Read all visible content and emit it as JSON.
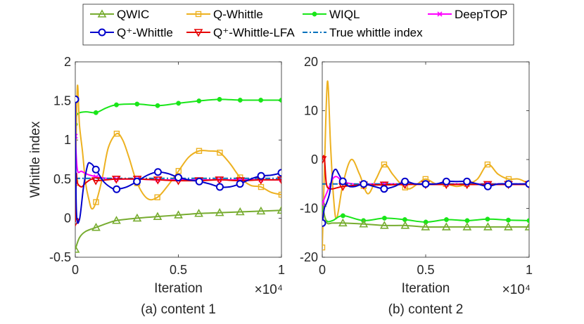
{
  "legend": {
    "entries": [
      {
        "name": "QWIC",
        "color": "#77AC30",
        "marker": "triangle-up"
      },
      {
        "name": "Q-Whittle",
        "color": "#EDB120",
        "marker": "square"
      },
      {
        "name": "WIQL",
        "color": "#19E619",
        "marker": "dot"
      },
      {
        "name": "DeepTOP",
        "color": "#FF00FF",
        "marker": "x"
      },
      {
        "name": "Q⁺-Whittle",
        "color": "#0000CC",
        "marker": "circle"
      },
      {
        "name": "Q⁺-Whittle-LFA",
        "color": "#E60000",
        "marker": "triangle-down"
      },
      {
        "name": "True whittle index",
        "color": "#0072BD",
        "marker": "none",
        "dash": "dashdot"
      }
    ]
  },
  "chart_data": [
    {
      "type": "line",
      "caption": "(a) content 1",
      "xlabel": "Iteration",
      "ylabel": "Whittle index",
      "x_exponent": "×10⁴",
      "xlim": [
        0,
        1
      ],
      "ylim": [
        -0.5,
        2
      ],
      "xticks": [
        "0",
        "0.5",
        "1"
      ],
      "yticks": [
        "-0.5",
        "0",
        "0.5",
        "1",
        "1.5",
        "2"
      ],
      "series": [
        {
          "name": "WIQL",
          "x": [
            0,
            0.01,
            0.05,
            0.1,
            0.15,
            0.2,
            0.3,
            0.4,
            0.5,
            0.6,
            0.7,
            0.8,
            0.9,
            1.0
          ],
          "y": [
            1.2,
            1.33,
            1.36,
            1.35,
            1.41,
            1.45,
            1.46,
            1.44,
            1.47,
            1.5,
            1.52,
            1.51,
            1.51,
            1.51
          ],
          "markers": [
            0,
            0.1,
            0.2,
            0.3,
            0.4,
            0.5,
            0.6,
            0.7,
            0.8,
            0.9,
            1.0
          ]
        },
        {
          "name": "Q-Whittle",
          "x": [
            0,
            0.01,
            0.02,
            0.035,
            0.05,
            0.065,
            0.08,
            0.1,
            0.13,
            0.16,
            0.2,
            0.23,
            0.26,
            0.3,
            0.35,
            0.4,
            0.45,
            0.5,
            0.55,
            0.6,
            0.65,
            0.7,
            0.75,
            0.8,
            0.85,
            0.9,
            0.95,
            1.0
          ],
          "y": [
            0.45,
            1.68,
            1.2,
            0.85,
            0.45,
            0.25,
            0.12,
            0.2,
            0.5,
            0.9,
            1.08,
            1.0,
            0.78,
            0.45,
            0.25,
            0.27,
            0.42,
            0.6,
            0.78,
            0.86,
            0.86,
            0.84,
            0.7,
            0.52,
            0.42,
            0.4,
            0.33,
            0.3
          ],
          "markers": [
            0,
            0.1,
            0.2,
            0.3,
            0.4,
            0.5,
            0.6,
            0.7,
            0.8,
            0.9,
            1.0
          ]
        },
        {
          "name": "DeepTOP",
          "x": [
            0,
            0.01,
            0.03,
            0.06,
            0.1,
            0.15,
            0.2,
            0.3,
            0.4,
            0.5,
            0.6,
            0.7,
            0.8,
            0.9,
            1.0
          ],
          "y": [
            1.05,
            0.62,
            0.6,
            0.56,
            0.53,
            0.51,
            0.5,
            0.5,
            0.49,
            0.49,
            0.49,
            0.49,
            0.49,
            0.49,
            0.49
          ],
          "markers": [
            0,
            0.1,
            0.2,
            0.3,
            0.4,
            0.5,
            0.6,
            0.7,
            0.8,
            0.9,
            1.0
          ]
        },
        {
          "name": "True whittle index",
          "x": [
            0,
            1.0
          ],
          "y": [
            0.51,
            0.51
          ],
          "markers": []
        },
        {
          "name": "Q⁺-Whittle-LFA",
          "x": [
            0,
            0.005,
            0.01,
            0.03,
            0.05,
            0.08,
            0.1,
            0.15,
            0.2,
            0.3,
            0.4,
            0.5,
            0.6,
            0.7,
            0.8,
            0.9,
            1.0
          ],
          "y": [
            -0.05,
            0.55,
            0.45,
            0.4,
            0.45,
            0.5,
            0.48,
            0.49,
            0.5,
            0.5,
            0.49,
            0.48,
            0.48,
            0.49,
            0.48,
            0.49,
            0.49
          ],
          "markers": [
            0,
            0.1,
            0.2,
            0.3,
            0.4,
            0.5,
            0.6,
            0.7,
            0.8,
            0.9,
            1.0
          ]
        },
        {
          "name": "Q⁺-Whittle",
          "x": [
            0,
            0.005,
            0.02,
            0.04,
            0.06,
            0.075,
            0.09,
            0.11,
            0.14,
            0.18,
            0.2,
            0.25,
            0.3,
            0.35,
            0.4,
            0.45,
            0.5,
            0.55,
            0.6,
            0.65,
            0.7,
            0.75,
            0.8,
            0.85,
            0.9,
            0.95,
            1.0
          ],
          "y": [
            1.52,
            0.12,
            -0.02,
            0.4,
            0.68,
            0.7,
            0.66,
            0.58,
            0.46,
            0.38,
            0.37,
            0.4,
            0.47,
            0.55,
            0.59,
            0.57,
            0.52,
            0.49,
            0.47,
            0.44,
            0.4,
            0.4,
            0.44,
            0.5,
            0.54,
            0.55,
            0.58
          ],
          "markers": [
            0,
            0.1,
            0.2,
            0.3,
            0.4,
            0.5,
            0.6,
            0.7,
            0.8,
            0.9,
            1.0
          ]
        },
        {
          "name": "QWIC",
          "x": [
            0,
            0.02,
            0.05,
            0.1,
            0.15,
            0.2,
            0.3,
            0.4,
            0.5,
            0.6,
            0.7,
            0.8,
            0.9,
            1.0
          ],
          "y": [
            -0.4,
            -0.25,
            -0.17,
            -0.12,
            -0.07,
            -0.03,
            0.0,
            0.02,
            0.04,
            0.06,
            0.07,
            0.08,
            0.09,
            0.1
          ],
          "markers": [
            0,
            0.1,
            0.2,
            0.3,
            0.4,
            0.5,
            0.6,
            0.7,
            0.8,
            0.9,
            1.0
          ]
        }
      ]
    },
    {
      "type": "line",
      "caption": "(b) content 2",
      "xlabel": "Iteration",
      "ylabel": "",
      "x_exponent": "×10⁴",
      "xlim": [
        0,
        1
      ],
      "ylim": [
        -20,
        20
      ],
      "xticks": [
        "0",
        "0.5",
        "1"
      ],
      "yticks": [
        "-20",
        "-10",
        "0",
        "10",
        "20"
      ],
      "series": [
        {
          "name": "Q-Whittle",
          "x": [
            0,
            0.01,
            0.025,
            0.04,
            0.055,
            0.07,
            0.1,
            0.14,
            0.18,
            0.22,
            0.26,
            0.3,
            0.34,
            0.38,
            0.42,
            0.46,
            0.5,
            0.55,
            0.6,
            0.65,
            0.7,
            0.75,
            0.8,
            0.85,
            0.9,
            0.95,
            1.0
          ],
          "y": [
            -18,
            -3,
            16,
            3,
            -8,
            -12,
            -5,
            0,
            -3,
            -7,
            -4,
            -1,
            -3,
            -5,
            -6,
            -5,
            -4,
            -5,
            -5,
            -5.5,
            -5,
            -4,
            -1,
            -3,
            -4,
            -4,
            -5
          ],
          "markers": [
            0,
            0.1,
            0.2,
            0.3,
            0.4,
            0.5,
            0.6,
            0.7,
            0.8,
            0.9,
            1.0
          ]
        },
        {
          "name": "WIQL",
          "x": [
            0,
            0.02,
            0.05,
            0.1,
            0.2,
            0.3,
            0.4,
            0.5,
            0.6,
            0.7,
            0.8,
            0.9,
            1.0
          ],
          "y": [
            -10,
            -12.5,
            -12.5,
            -11.5,
            -12.5,
            -12,
            -12.3,
            -12.8,
            -12.3,
            -12.5,
            -12.2,
            -12.4,
            -12.5
          ],
          "markers": [
            0,
            0.1,
            0.2,
            0.3,
            0.4,
            0.5,
            0.6,
            0.7,
            0.8,
            0.9,
            1.0
          ]
        },
        {
          "name": "QWIC",
          "x": [
            0,
            0.02,
            0.05,
            0.1,
            0.2,
            0.3,
            0.4,
            0.5,
            0.6,
            0.7,
            0.8,
            0.9,
            1.0
          ],
          "y": [
            -9,
            -12.8,
            -13,
            -13,
            -13.2,
            -13.5,
            -13.5,
            -13.8,
            -13.8,
            -13.8,
            -13.8,
            -13.8,
            -13.8
          ],
          "markers": [
            0,
            0.1,
            0.2,
            0.3,
            0.4,
            0.5,
            0.6,
            0.7,
            0.8,
            0.9,
            1.0
          ]
        },
        {
          "name": "DeepTOP",
          "x": [
            0,
            0.01,
            0.03,
            0.05,
            0.07,
            0.1,
            0.15,
            0.2,
            0.3,
            0.4,
            0.5,
            0.6,
            0.7,
            0.8,
            0.9,
            1.0
          ],
          "y": [
            -9,
            -8,
            -6,
            -4,
            -3.5,
            -4.5,
            -5,
            -5,
            -5,
            -5,
            -5,
            -5,
            -5,
            -5,
            -5,
            -5
          ],
          "markers": [
            0,
            0.1,
            0.2,
            0.3,
            0.4,
            0.5,
            0.6,
            0.7,
            0.8,
            0.9,
            1.0
          ]
        },
        {
          "name": "True whittle index",
          "x": [
            0,
            1.0
          ],
          "y": [
            -5,
            -5
          ],
          "markers": []
        },
        {
          "name": "Q⁺-Whittle-LFA",
          "x": [
            0,
            0.01,
            0.02,
            0.04,
            0.07,
            0.1,
            0.15,
            0.2,
            0.3,
            0.4,
            0.5,
            0.6,
            0.7,
            0.8,
            0.9,
            1.0
          ],
          "y": [
            0,
            0.5,
            -5,
            -6,
            -5.8,
            -5.5,
            -5.3,
            -5.2,
            -5.2,
            -5.1,
            -5.1,
            -5.1,
            -5.1,
            -5.1,
            -5.1,
            -5.1
          ],
          "markers": [
            0,
            0.1,
            0.2,
            0.3,
            0.4,
            0.5,
            0.6,
            0.7,
            0.8,
            0.9,
            1.0
          ]
        },
        {
          "name": "Q⁺-Whittle",
          "x": [
            0,
            0.01,
            0.02,
            0.035,
            0.05,
            0.065,
            0.08,
            0.1,
            0.13,
            0.16,
            0.2,
            0.25,
            0.3,
            0.35,
            0.4,
            0.45,
            0.5,
            0.55,
            0.6,
            0.65,
            0.7,
            0.75,
            0.8,
            0.85,
            0.9,
            0.95,
            1.0
          ],
          "y": [
            -13,
            -10,
            -9,
            -7,
            -3,
            -2,
            -3,
            -4.5,
            -5.5,
            -5.5,
            -5,
            -5.5,
            -6,
            -5.5,
            -4.5,
            -5,
            -5,
            -5,
            -4.5,
            -4.5,
            -4.5,
            -5,
            -5.5,
            -5,
            -5,
            -5,
            -5
          ],
          "markers": [
            0,
            0.1,
            0.2,
            0.3,
            0.4,
            0.5,
            0.6,
            0.7,
            0.8,
            0.9,
            1.0
          ]
        }
      ]
    }
  ]
}
